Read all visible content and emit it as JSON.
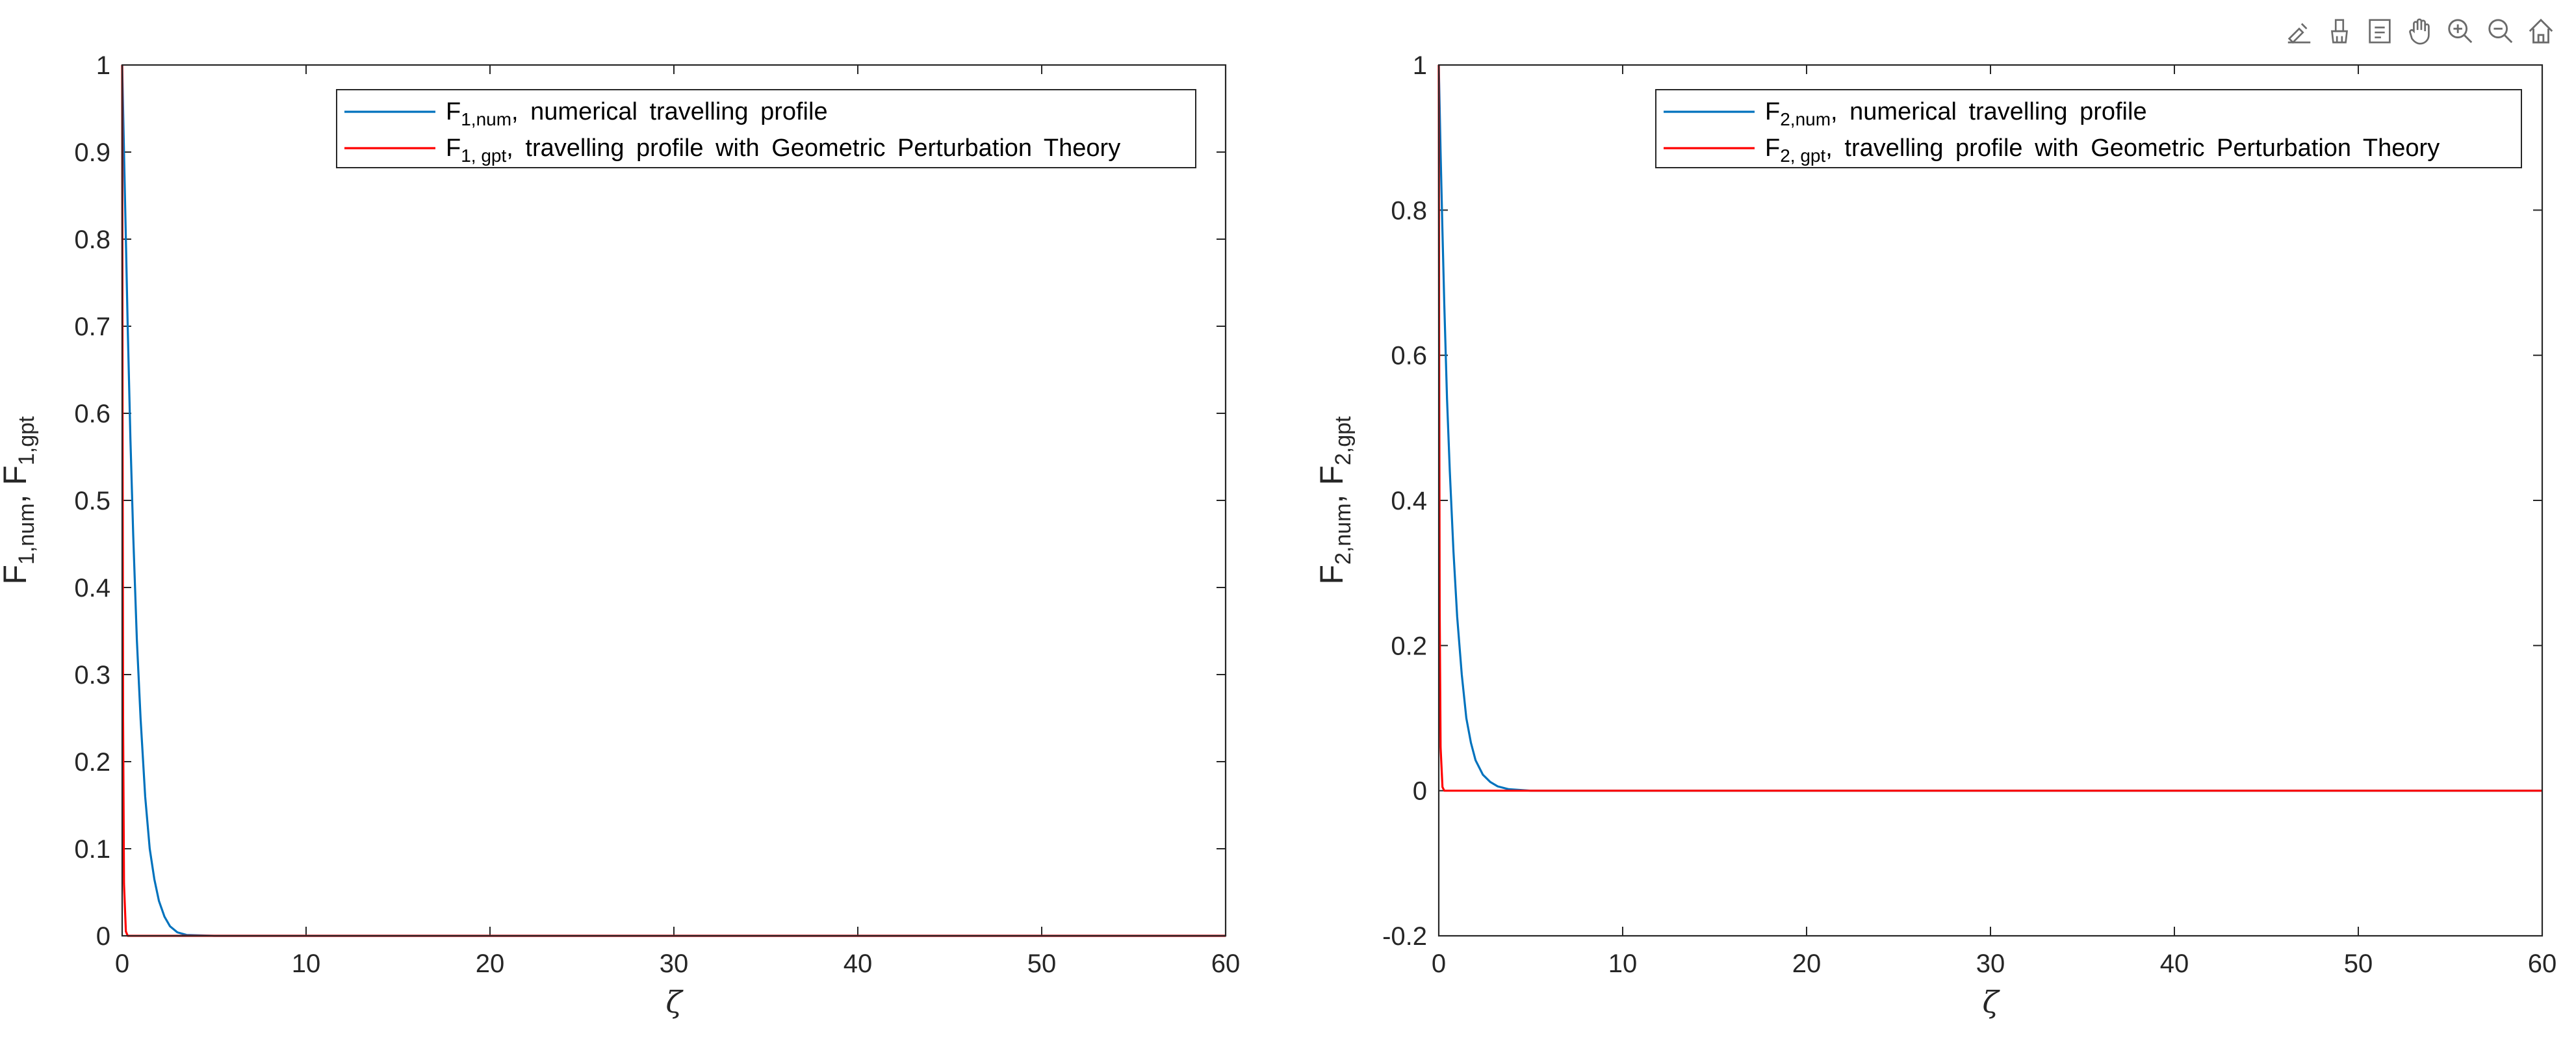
{
  "toolbar": {
    "icons": [
      "data-tips-icon",
      "brush-icon",
      "datatip-box-icon",
      "pan-hand-icon",
      "zoom-in-icon",
      "zoom-out-icon",
      "home-icon"
    ]
  },
  "colors": {
    "numerical": "#0072BD",
    "gpt": "#FF0000",
    "axis": "#262626"
  },
  "chart_data": [
    {
      "type": "line",
      "title": "",
      "xlabel": "ζ",
      "ylabel": "F1,num, F1,gpt",
      "xlim": [
        0,
        60
      ],
      "ylim": [
        0,
        1
      ],
      "xticks": [
        0,
        10,
        20,
        30,
        40,
        50,
        60
      ],
      "yticks": [
        0,
        0.1,
        0.2,
        0.3,
        0.4,
        0.5,
        0.6,
        0.7,
        0.8,
        0.9,
        1
      ],
      "ytick_labels": [
        "0",
        "0.1",
        "0.2",
        "0.3",
        "0.4",
        "0.5",
        "0.6",
        "0.7",
        "0.8",
        "0.9",
        "1"
      ],
      "grid": false,
      "legend_position": "top-right",
      "series": [
        {
          "name": "F1,num, numerical travelling profile",
          "legend_main": "F",
          "legend_sub": "1,num",
          "legend_text": ", numerical travelling profile",
          "color": "#0072BD",
          "x": [
            0,
            0.1,
            0.2,
            0.3,
            0.45,
            0.6,
            0.8,
            1.0,
            1.25,
            1.5,
            1.75,
            2.0,
            2.3,
            2.6,
            3.0,
            3.5,
            5,
            10,
            20,
            30,
            40,
            50,
            60
          ],
          "y": [
            1,
            0.9,
            0.8,
            0.7,
            0.57,
            0.46,
            0.34,
            0.25,
            0.16,
            0.1,
            0.065,
            0.04,
            0.022,
            0.011,
            0.004,
            0.001,
            0,
            0,
            0,
            0,
            0,
            0,
            0
          ]
        },
        {
          "name": "F1, gpt, travelling profile with Geometric Perturbation Theory",
          "legend_main": "F",
          "legend_sub": "1, gpt",
          "legend_text": ", travelling profile with Geometric Perturbation Theory",
          "color": "#FF0000",
          "x": [
            0,
            0.005,
            0.02,
            0.05,
            0.1,
            0.2,
            0.3,
            1,
            5,
            10,
            20,
            30,
            40,
            50,
            60
          ],
          "y": [
            1,
            0.95,
            0.6,
            0.25,
            0.06,
            0.005,
            0,
            0,
            0,
            0,
            0,
            0,
            0,
            0,
            0
          ]
        }
      ]
    },
    {
      "type": "line",
      "title": "",
      "xlabel": "ζ",
      "ylabel": "F2,num, F2,gpt",
      "xlim": [
        0,
        60
      ],
      "ylim": [
        -0.2,
        1
      ],
      "xticks": [
        0,
        10,
        20,
        30,
        40,
        50,
        60
      ],
      "yticks": [
        -0.2,
        0,
        0.2,
        0.4,
        0.6,
        0.8,
        1
      ],
      "ytick_labels": [
        "-0.2",
        "0",
        "0.2",
        "0.4",
        "0.6",
        "0.8",
        "1"
      ],
      "grid": false,
      "legend_position": "top-right",
      "series": [
        {
          "name": "F2,num, numerical travelling profile",
          "legend_main": "F",
          "legend_sub": "2,num",
          "legend_text": ", numerical travelling profile",
          "color": "#0072BD",
          "x": [
            0,
            0.1,
            0.2,
            0.3,
            0.45,
            0.6,
            0.8,
            1.0,
            1.25,
            1.5,
            1.75,
            2.0,
            2.4,
            2.8,
            3.2,
            3.8,
            5,
            10,
            20,
            30,
            40,
            50,
            60
          ],
          "y": [
            1,
            0.88,
            0.77,
            0.67,
            0.54,
            0.44,
            0.33,
            0.24,
            0.16,
            0.1,
            0.066,
            0.042,
            0.022,
            0.012,
            0.006,
            0.002,
            0,
            0,
            0,
            0,
            0,
            0,
            0
          ]
        },
        {
          "name": "F2, gpt, travelling profile with Geometric Perturbation Theory",
          "legend_main": "F",
          "legend_sub": "2, gpt",
          "legend_text": ", travelling profile with Geometric Perturbation Theory",
          "color": "#FF0000",
          "x": [
            0,
            0.005,
            0.02,
            0.05,
            0.1,
            0.2,
            0.3,
            1,
            5,
            10,
            20,
            30,
            40,
            50,
            60
          ],
          "y": [
            1,
            0.95,
            0.6,
            0.25,
            0.06,
            0.005,
            0,
            0,
            0,
            0,
            0,
            0,
            0,
            0,
            0
          ]
        }
      ]
    }
  ]
}
